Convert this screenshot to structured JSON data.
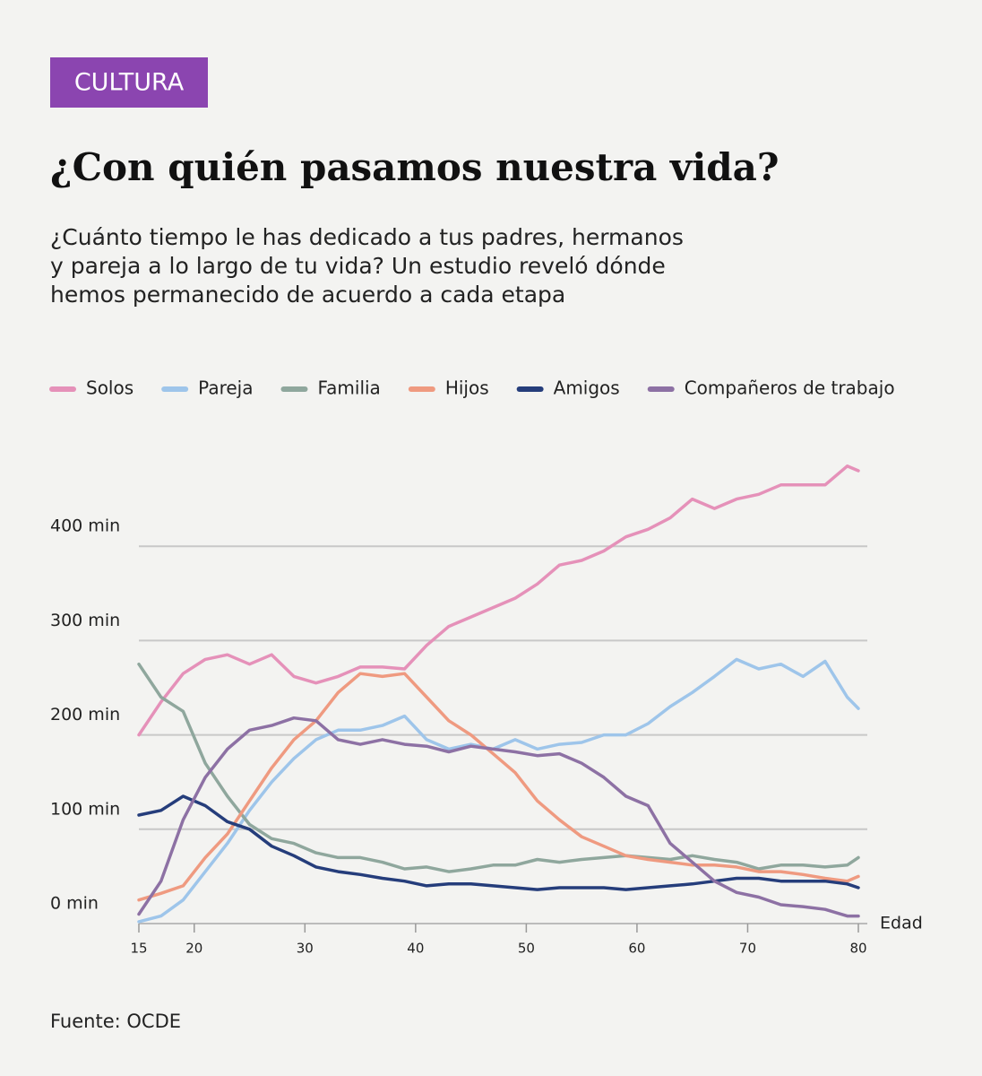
{
  "tag": "CULTURA",
  "chart_data": {
    "type": "line",
    "title": "¿Con quién pasamos nuestra vida?",
    "subtitle": [
      "¿Cuánto tiempo le has dedicado a tus padres, hermanos",
      "y pareja a lo largo de tu vida? Un estudio reveló dónde",
      "hemos permanecido de acuerdo a cada etapa"
    ],
    "x_label": "Edad",
    "source": "Fuente: OCDE",
    "x": [
      15,
      17,
      19,
      21,
      23,
      25,
      27,
      29,
      31,
      33,
      35,
      37,
      39,
      41,
      43,
      45,
      47,
      49,
      51,
      53,
      55,
      57,
      59,
      61,
      63,
      65,
      67,
      69,
      71,
      73,
      75,
      77,
      79,
      80
    ],
    "xlim": [
      15,
      80
    ],
    "xticks": [
      15,
      20,
      30,
      40,
      50,
      60,
      70,
      80
    ],
    "ylim": [
      0,
      500
    ],
    "yticks": [
      {
        "value": 0,
        "label": "0 min"
      },
      {
        "value": 100,
        "label": "100 min"
      },
      {
        "value": 200,
        "label": "200 min"
      },
      {
        "value": 300,
        "label": "300 min"
      },
      {
        "value": 400,
        "label": "400 min"
      }
    ],
    "grid": true,
    "series": [
      {
        "name": "Solos",
        "color": "#e591b9",
        "values": [
          200,
          235,
          265,
          280,
          285,
          275,
          285,
          262,
          255,
          262,
          272,
          272,
          270,
          295,
          315,
          325,
          335,
          345,
          360,
          380,
          385,
          395,
          410,
          418,
          430,
          450,
          440,
          450,
          455,
          465,
          465,
          465,
          485,
          480
        ]
      },
      {
        "name": "Pareja",
        "color": "#9ec5ea",
        "values": [
          2,
          8,
          25,
          55,
          85,
          120,
          150,
          175,
          195,
          205,
          205,
          210,
          220,
          195,
          185,
          190,
          185,
          195,
          185,
          190,
          192,
          200,
          200,
          212,
          230,
          245,
          262,
          280,
          270,
          275,
          262,
          278,
          240,
          228
        ]
      },
      {
        "name": "Familia",
        "color": "#8fa79d",
        "values": [
          275,
          240,
          225,
          170,
          135,
          105,
          90,
          85,
          75,
          70,
          70,
          65,
          58,
          60,
          55,
          58,
          62,
          62,
          68,
          65,
          68,
          70,
          72,
          70,
          68,
          72,
          68,
          65,
          58,
          62,
          62,
          60,
          62,
          70
        ]
      },
      {
        "name": "Hijos",
        "color": "#ef9a80",
        "values": [
          25,
          32,
          40,
          70,
          95,
          130,
          165,
          195,
          215,
          245,
          265,
          262,
          265,
          240,
          215,
          200,
          180,
          160,
          130,
          110,
          92,
          82,
          72,
          68,
          65,
          62,
          62,
          60,
          55,
          55,
          52,
          48,
          45,
          50
        ]
      },
      {
        "name": "Amigos",
        "color": "#253d7b",
        "values": [
          115,
          120,
          135,
          125,
          108,
          100,
          82,
          72,
          60,
          55,
          52,
          48,
          45,
          40,
          42,
          42,
          40,
          38,
          36,
          38,
          38,
          38,
          36,
          38,
          40,
          42,
          45,
          48,
          48,
          45,
          45,
          45,
          42,
          38
        ]
      },
      {
        "name": "Compañeros de trabajo",
        "color": "#8d71a4",
        "values": [
          10,
          45,
          110,
          155,
          185,
          205,
          210,
          218,
          215,
          195,
          190,
          195,
          190,
          188,
          182,
          188,
          185,
          182,
          178,
          180,
          170,
          155,
          135,
          125,
          85,
          65,
          45,
          33,
          28,
          20,
          18,
          15,
          8,
          8
        ]
      }
    ]
  }
}
